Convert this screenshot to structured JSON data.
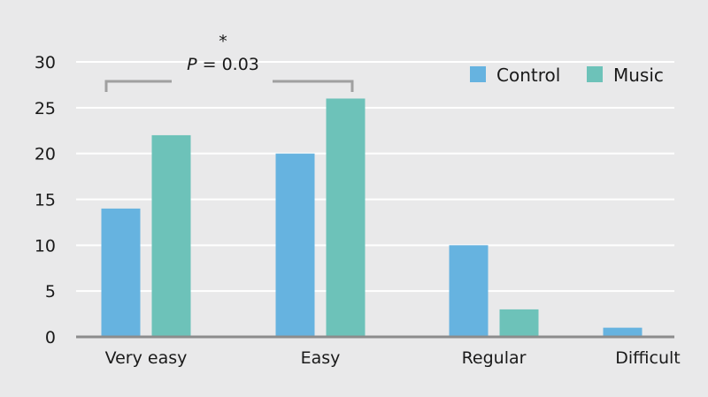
{
  "chart_data": {
    "type": "bar",
    "categories": [
      "Very easy",
      "Easy",
      "Regular",
      "Difficult"
    ],
    "series": [
      {
        "name": "Control",
        "values": [
          14,
          20,
          10,
          1
        ],
        "color": "#66b3e0"
      },
      {
        "name": "Music",
        "values": [
          22,
          26,
          3,
          0
        ],
        "color": "#6dc2b9"
      }
    ],
    "ylim": [
      0,
      30
    ],
    "yticks": [
      0,
      5,
      10,
      15,
      20,
      25,
      30
    ],
    "grid": true,
    "legend_position": "top-right",
    "background": "#e9e9ea",
    "grid_color": "#ffffff",
    "axis_color": "#8c8c8c",
    "bracket_color": "#a0a0a0",
    "annotation": {
      "star": "*",
      "p_label": "P",
      "p_value": " = 0.03",
      "between": [
        "Very easy",
        "Easy"
      ]
    }
  }
}
